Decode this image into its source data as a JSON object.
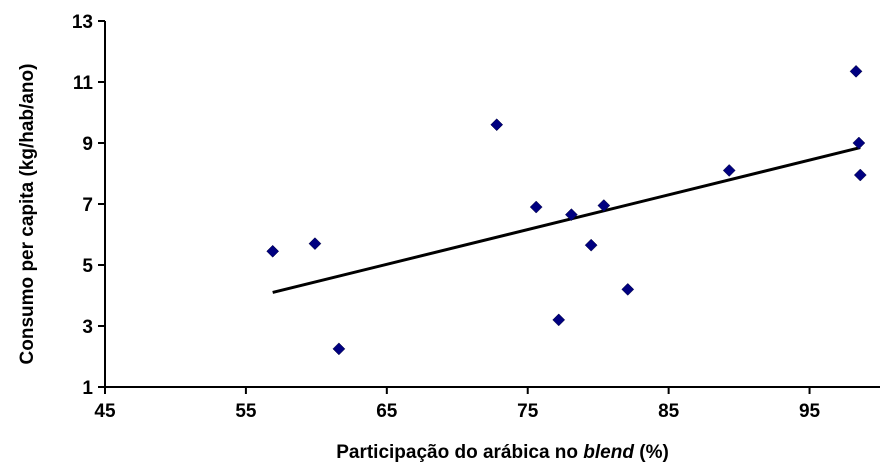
{
  "chart_data": {
    "type": "scatter",
    "xlabel_parts": [
      {
        "text": "Participação do arábica no ",
        "italic": false
      },
      {
        "text": "blend",
        "italic": true
      },
      {
        "text": " (%)",
        "italic": false
      }
    ],
    "ylabel": "Consumo per capita (kg/hab/ano)",
    "xlim": [
      45,
      100
    ],
    "ylim": [
      1,
      13
    ],
    "xticks": [
      45,
      55,
      65,
      75,
      85,
      95
    ],
    "yticks": [
      1,
      3,
      5,
      7,
      9,
      11,
      13
    ],
    "grid": false,
    "legend": "none",
    "marker": "diamond",
    "marker_color": "#000080",
    "line_color": "#000000",
    "points": [
      {
        "x": 56.9,
        "y": 5.45
      },
      {
        "x": 59.9,
        "y": 5.7
      },
      {
        "x": 61.6,
        "y": 2.25
      },
      {
        "x": 72.8,
        "y": 9.6
      },
      {
        "x": 75.6,
        "y": 6.9
      },
      {
        "x": 77.2,
        "y": 3.2
      },
      {
        "x": 78.1,
        "y": 6.65
      },
      {
        "x": 79.5,
        "y": 5.65
      },
      {
        "x": 80.4,
        "y": 6.95
      },
      {
        "x": 82.1,
        "y": 4.2
      },
      {
        "x": 89.3,
        "y": 8.1
      },
      {
        "x": 98.3,
        "y": 11.35
      },
      {
        "x": 98.5,
        "y": 9.0
      },
      {
        "x": 98.6,
        "y": 7.95
      }
    ],
    "trendline": {
      "x": [
        56.9,
        98.6
      ],
      "y": [
        4.1,
        8.85
      ]
    }
  }
}
